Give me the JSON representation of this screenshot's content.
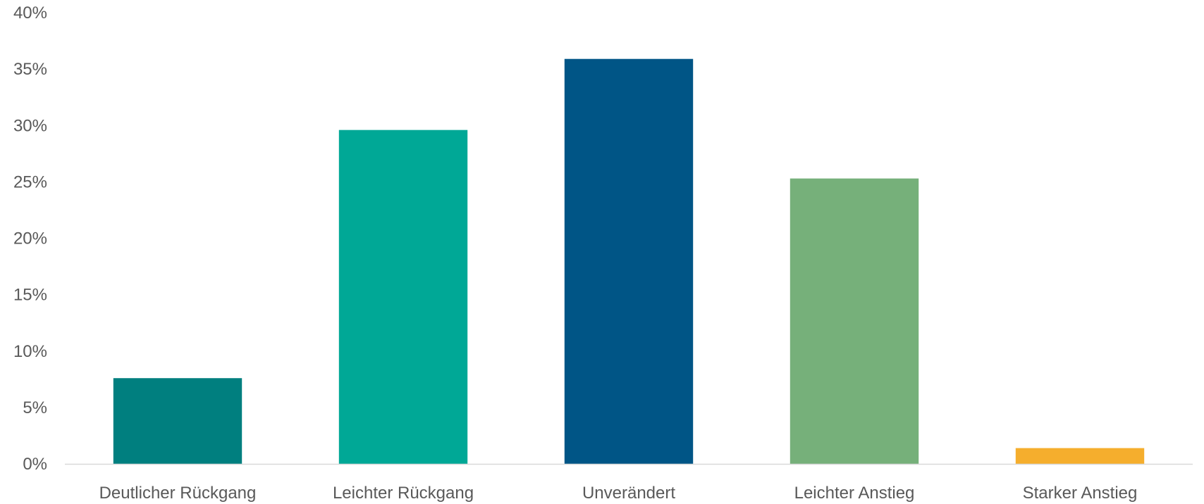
{
  "chart_data": {
    "type": "bar",
    "title": "",
    "xlabel": "",
    "ylabel": "",
    "categories": [
      "Deutlicher Rückgang",
      "Leichter Rückgang",
      "Unverändert",
      "Leichter Anstieg",
      "Starker Anstieg"
    ],
    "values": [
      7.6,
      29.6,
      35.9,
      25.3,
      1.4
    ],
    "value_unit": "%",
    "colors": [
      "#007F7F",
      "#00A896",
      "#005586",
      "#76B07A",
      "#F5AE2D"
    ],
    "ylim": [
      0,
      40
    ],
    "y_ticks": [
      0,
      5,
      10,
      15,
      20,
      25,
      30,
      35,
      40
    ],
    "y_tick_labels": [
      "0%",
      "5%",
      "10%",
      "15%",
      "20%",
      "25%",
      "30%",
      "35%",
      "40%"
    ],
    "grid": false,
    "legend": "none",
    "axis_color": "#d9d9d9"
  }
}
